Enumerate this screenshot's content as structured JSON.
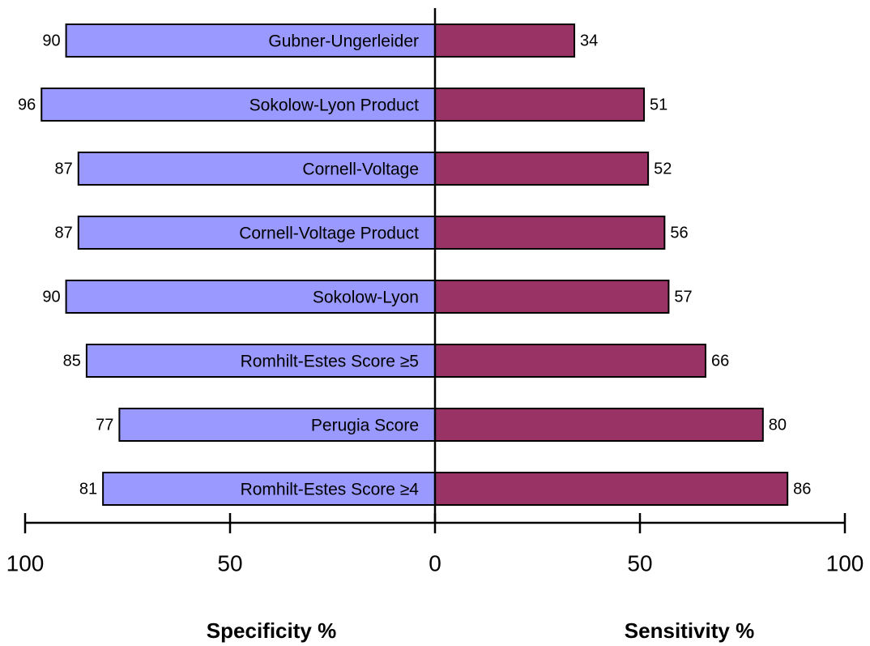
{
  "chart_data": {
    "type": "butterfly",
    "categories": [
      "Gubner-Ungerleider",
      "Sokolow-Lyon Product",
      "Cornell-Voltage",
      "Cornell-Voltage Product",
      "Sokolow-Lyon",
      "Romhilt-Estes Score ≥5",
      "Perugia Score",
      "Romhilt-Estes Score ≥4"
    ],
    "series": [
      {
        "name": "Specificity %",
        "color": "#9999ff",
        "side": "left",
        "values": [
          90,
          96,
          87,
          87,
          90,
          85,
          77,
          81
        ]
      },
      {
        "name": "Sensitivity %",
        "color": "#993366",
        "side": "right",
        "values": [
          34,
          51,
          52,
          56,
          57,
          66,
          80,
          86
        ]
      }
    ],
    "xlim": [
      -100,
      100
    ],
    "xticks": [
      {
        "value": -100,
        "label": "100"
      },
      {
        "value": -50,
        "label": "50"
      },
      0,
      50,
      100
    ]
  }
}
